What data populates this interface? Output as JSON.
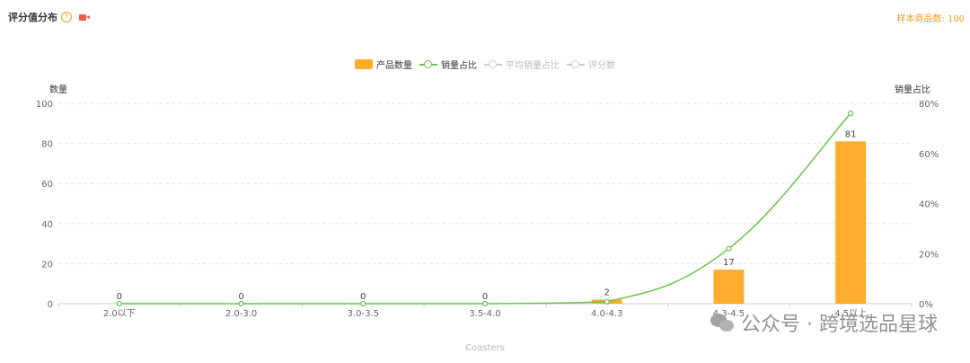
{
  "header": {
    "title": "评分值分布",
    "help_icon": "?",
    "sample_count": "样本商品数: 100"
  },
  "legend": [
    {
      "label": "产品数量",
      "kind": "bar",
      "active": true
    },
    {
      "label": "销量占比",
      "kind": "line",
      "active": true
    },
    {
      "label": "平均销量占比",
      "kind": "line",
      "active": false
    },
    {
      "label": "评分数",
      "kind": "line",
      "active": false
    }
  ],
  "colors": {
    "bar": "#ffac2f",
    "line": "#6cc24a",
    "grid": "#e5e5e5",
    "axis_text": "#666666",
    "accent": "#f59a23"
  },
  "watermark": {
    "text": "公众号 · 跨境选品星球"
  },
  "chart_data": {
    "type": "bar",
    "categories": [
      "2.0以下",
      "2.0-3.0",
      "3.0-3.5",
      "3.5-4.0",
      "4.0-4.3",
      "4.3-4.5",
      "4.5以上"
    ],
    "xlabel": "Coasters",
    "ylabel": "数量",
    "ylabel_right": "销量占比",
    "ylim": [
      0,
      100
    ],
    "yticks": [
      0,
      20,
      40,
      60,
      80,
      100
    ],
    "ylim_right": [
      0,
      80
    ],
    "yticks_right": [
      "0%",
      "20%",
      "40%",
      "60%",
      "80%"
    ],
    "series": [
      {
        "name": "产品数量",
        "type": "bar",
        "axis": "left",
        "values": [
          0,
          0,
          0,
          0,
          2,
          17,
          81
        ]
      },
      {
        "name": "销量占比",
        "type": "line",
        "axis": "right",
        "values": [
          0,
          0,
          0,
          0,
          0.8,
          22,
          76
        ]
      }
    ],
    "grid": true,
    "legend_position": "top-center"
  }
}
